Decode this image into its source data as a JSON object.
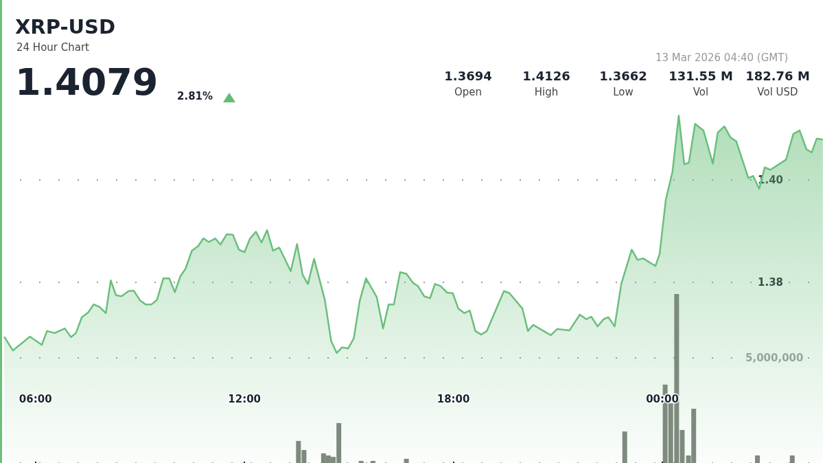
{
  "chart_data": {
    "type": "area",
    "title": "XRP-USD",
    "subtitle": "24 Hour Chart",
    "annotations": [
      "1.4079",
      "2.81%",
      "13 Mar 2026 04:40 (GMT)",
      "1.3694",
      "Open",
      "1.4126",
      "High",
      "1.3662",
      "Low",
      "131.55 M",
      "Vol",
      "182.76 M",
      "Vol USD"
    ],
    "xlim": [
      5.0,
      28.67
    ],
    "xticks": [
      {
        "value": 6,
        "label": "06:00"
      },
      {
        "value": 12,
        "label": "12:00"
      },
      {
        "value": 18,
        "label": "18:00"
      },
      {
        "value": 24,
        "label": "00:00"
      }
    ],
    "ylim": [
      1.3447,
      1.4352
    ],
    "yticks": [
      {
        "value": 1.38,
        "label": "1.38"
      },
      {
        "value": 1.4,
        "label": "1.40"
      }
    ],
    "y2lim": [
      0,
      22030000
    ],
    "y2ticks": [
      {
        "value": 0,
        "label": null
      },
      5000000
    ],
    "grid": "y",
    "series": [
      {
        "color": "#6abf7b",
        "x": [
          5.1,
          5.35,
          5.84,
          6.18,
          6.33,
          6.55,
          6.84,
          7.02,
          7.16,
          7.33,
          7.51,
          7.67,
          7.84,
          8.02,
          8.16,
          8.31,
          8.47,
          8.67,
          8.82,
          9.0,
          9.16,
          9.33,
          9.49,
          9.67,
          9.84,
          10.0,
          10.16,
          10.31,
          10.49,
          10.67,
          10.82,
          10.98,
          11.16,
          11.31,
          11.49,
          11.67,
          11.84,
          12.0,
          12.16,
          12.33,
          12.49,
          12.65,
          12.82,
          13.0,
          13.33,
          13.51,
          13.67,
          13.82,
          14.0,
          14.31,
          14.49,
          14.65,
          14.8,
          14.98,
          15.14,
          15.31,
          15.49,
          15.8,
          15.98,
          16.14,
          16.29,
          16.47,
          16.65,
          16.84,
          16.98,
          17.16,
          17.33,
          17.47,
          17.63,
          17.82,
          17.98,
          18.14,
          18.31,
          18.47,
          18.63,
          18.8,
          18.96,
          19.45,
          19.61,
          19.98,
          20.14,
          20.29,
          20.69,
          20.8,
          20.98,
          21.33,
          21.63,
          21.82,
          21.96,
          22.14,
          22.31,
          22.45,
          22.63,
          22.82,
          23.12,
          23.29,
          23.45,
          23.8,
          23.92,
          24.1,
          24.29,
          24.47,
          24.63,
          24.76,
          24.94,
          25.18,
          25.45,
          25.59,
          25.78,
          25.96,
          26.12,
          26.47,
          26.61,
          26.78,
          26.94,
          27.1,
          27.55,
          27.76,
          27.94,
          28.14,
          28.29,
          28.43,
          28.61
        ],
        "values": [
          1.3694,
          1.3667,
          1.3694,
          1.3678,
          1.3705,
          1.3701,
          1.371,
          1.3693,
          1.3701,
          1.3732,
          1.3741,
          1.3757,
          1.3752,
          1.374,
          1.3804,
          1.3775,
          1.3773,
          1.3783,
          1.3784,
          1.3765,
          1.3757,
          1.3757,
          1.3766,
          1.3808,
          1.3808,
          1.3781,
          1.3812,
          1.3827,
          1.3862,
          1.3871,
          1.3886,
          1.3879,
          1.3886,
          1.3874,
          1.3894,
          1.3893,
          1.3864,
          1.3859,
          1.3886,
          1.3899,
          1.3878,
          1.3902,
          1.3862,
          1.3868,
          1.3822,
          1.3875,
          1.3815,
          1.3797,
          1.3846,
          1.3765,
          1.3685,
          1.3662,
          1.3673,
          1.3671,
          1.3691,
          1.3764,
          1.3808,
          1.3771,
          1.371,
          1.3757,
          1.3757,
          1.382,
          1.3817,
          1.3799,
          1.3793,
          1.3773,
          1.3769,
          1.3797,
          1.3793,
          1.378,
          1.3779,
          1.3749,
          1.374,
          1.3745,
          1.3705,
          1.3698,
          1.3705,
          1.3783,
          1.3779,
          1.3749,
          1.3705,
          1.3717,
          1.3701,
          1.3697,
          1.3709,
          1.3706,
          1.3737,
          1.3728,
          1.3733,
          1.3714,
          1.3728,
          1.3732,
          1.3714,
          1.3797,
          1.3864,
          1.3844,
          1.3847,
          1.3832,
          1.3855,
          1.3962,
          1.4016,
          1.4126,
          1.4031,
          1.4034,
          1.411,
          1.4097,
          1.4032,
          1.4093,
          1.4105,
          1.4083,
          1.4076,
          1.4004,
          1.4008,
          1.3983,
          1.4025,
          1.402,
          1.404,
          1.409,
          1.4097,
          1.406,
          1.4054,
          1.4081,
          1.4079
        ]
      },
      {
        "type": "bar",
        "axis": "y2",
        "color": "#7d8a7d",
        "x": [
          13.55,
          13.71,
          14.27,
          14.41,
          14.55,
          14.71,
          15.35,
          15.69,
          16.65,
          22.92,
          23.25,
          24.08,
          24.24,
          24.41,
          24.57,
          24.75,
          24.9,
          26.73,
          27.73
        ],
        "values": [
          1050000,
          620000,
          460000,
          360000,
          290000,
          1900000,
          100000,
          100000,
          200000,
          1500000,
          null,
          3730000,
          2840000,
          8040000,
          1570000,
          360000,
          2580000,
          360000,
          360000
        ]
      }
    ]
  }
}
